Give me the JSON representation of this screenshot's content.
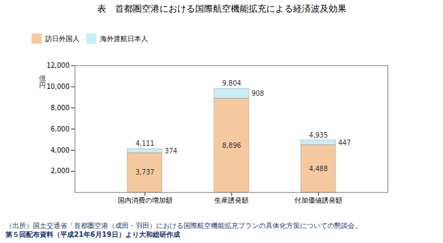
{
  "chart_data": {
    "type": "bar",
    "stacked": true,
    "data_labels": true,
    "title": "表　首都圏空港における国際航空機能拡充による経済波及効果",
    "categories": [
      "国内消費の増加額",
      "生産誘発額",
      "付加価値誘発額"
    ],
    "series": [
      {
        "name": "訪日外国人",
        "color": "#F5C9A0",
        "values": [
          3737,
          8896,
          4488
        ],
        "value_labels": [
          "3,737",
          "8,896",
          "4,488"
        ]
      },
      {
        "name": "海外渡航日本人",
        "color": "#C8EEF5",
        "values": [
          374,
          908,
          447
        ]
      }
    ],
    "totals": [
      4111,
      9804,
      4935
    ],
    "total_labels": [
      "4,111",
      "9,804",
      "4,935"
    ],
    "ylabel": "億\n円",
    "ylim": [
      0,
      12000
    ],
    "yticks": [
      {
        "value": 2000,
        "label": "2,000"
      },
      {
        "value": 4000,
        "label": "4,000"
      },
      {
        "value": 6000,
        "label": "6,000"
      },
      {
        "value": 8000,
        "label": "8,000"
      },
      {
        "value": 10000,
        "label": "10,000"
      },
      {
        "value": 12000,
        "label": "12,000"
      }
    ],
    "footnotes": [
      "（出所）国土交通省「首都圏空港（成田・羽田）における国際航空機能拡充プランの具体化方策についての懇談会」",
      "第５回配布資料（平成21年6月19日）より大和総研作成"
    ]
  }
}
